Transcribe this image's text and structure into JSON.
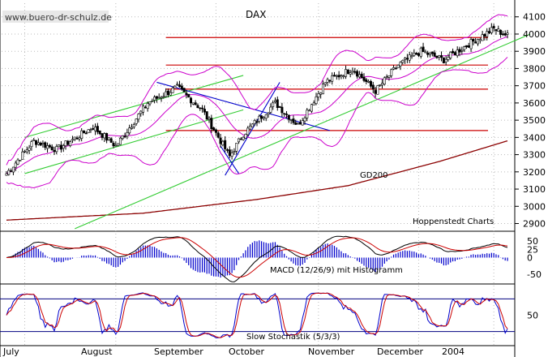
{
  "watermark": "www.buero-dr-schulz.de",
  "chart_data": [
    {
      "type": "candlestick",
      "title": "DAX",
      "source_note": "Hoppenstedt Charts",
      "ylim": [
        2860,
        4160
      ],
      "y_ticks": [
        2900,
        3000,
        3100,
        3200,
        3300,
        3400,
        3500,
        3600,
        3700,
        3800,
        3900,
        4000,
        4100
      ],
      "x_ticks": [
        "July",
        "August",
        "September",
        "October",
        "November",
        "December",
        "2004"
      ],
      "grid": true,
      "close_anchors": [
        {
          "t": 0,
          "v": 3190
        },
        {
          "t": 12,
          "v": 3380
        },
        {
          "t": 22,
          "v": 3330
        },
        {
          "t": 38,
          "v": 3460
        },
        {
          "t": 48,
          "v": 3350
        },
        {
          "t": 62,
          "v": 3600
        },
        {
          "t": 75,
          "v": 3690
        },
        {
          "t": 86,
          "v": 3560
        },
        {
          "t": 98,
          "v": 3290
        },
        {
          "t": 104,
          "v": 3420
        },
        {
          "t": 118,
          "v": 3600
        },
        {
          "t": 128,
          "v": 3470
        },
        {
          "t": 140,
          "v": 3720
        },
        {
          "t": 152,
          "v": 3800
        },
        {
          "t": 162,
          "v": 3670
        },
        {
          "t": 172,
          "v": 3820
        },
        {
          "t": 182,
          "v": 3900
        },
        {
          "t": 192,
          "v": 3850
        },
        {
          "t": 204,
          "v": 3950
        },
        {
          "t": 214,
          "v": 4030
        },
        {
          "t": 220,
          "v": 3990
        }
      ],
      "moving_average": {
        "name": "GD200",
        "points": [
          {
            "t": 0,
            "v": 2920
          },
          {
            "t": 60,
            "v": 2960
          },
          {
            "t": 110,
            "v": 3040
          },
          {
            "t": 150,
            "v": 3120
          },
          {
            "t": 190,
            "v": 3260
          },
          {
            "t": 220,
            "v": 3380
          }
        ]
      },
      "horizontal_lines": [
        {
          "price": 3440,
          "color": "#cc0000"
        },
        {
          "price": 3680,
          "color": "#cc0000"
        },
        {
          "price": 3820,
          "color": "#cc0000"
        },
        {
          "price": 3980,
          "color": "#cc0000"
        }
      ],
      "trend_lines": [
        {
          "color": "#33cc33",
          "from": {
            "t": 8,
            "v": 3400
          },
          "to": {
            "t": 104,
            "v": 3760
          }
        },
        {
          "color": "#33cc33",
          "from": {
            "t": 8,
            "v": 3190
          },
          "to": {
            "t": 104,
            "v": 3560
          }
        },
        {
          "color": "#33cc33",
          "from": {
            "t": 30,
            "v": 2870
          },
          "to": {
            "t": 230,
            "v": 4000
          }
        },
        {
          "color": "#0000cc",
          "from": {
            "t": 66,
            "v": 3720
          },
          "to": {
            "t": 142,
            "v": 3440
          }
        },
        {
          "color": "#0000cc",
          "from": {
            "t": 96,
            "v": 3180
          },
          "to": {
            "t": 120,
            "v": 3720
          }
        },
        {
          "color": "#0000cc",
          "from": {
            "t": 94,
            "v": 3350
          },
          "to": {
            "t": 102,
            "v": 3190
          }
        }
      ]
    },
    {
      "type": "line",
      "title": "MACD (12/26/9) mit Histogramm",
      "ylim": [
        -75,
        75
      ],
      "y_ticks": [
        50,
        25,
        0,
        -50
      ]
    },
    {
      "type": "line",
      "title": "Slow Stochastik (5/3/3)",
      "ylim": [
        0,
        100
      ],
      "y_ticks": [
        50
      ]
    }
  ]
}
